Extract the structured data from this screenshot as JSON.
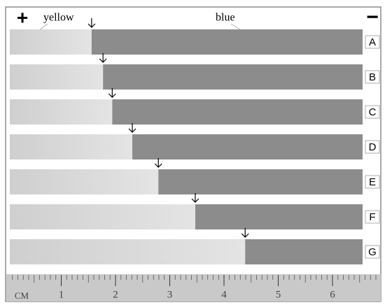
{
  "header": {
    "plus": "+",
    "yellow": "yellow",
    "blue": "blue",
    "minus": "−"
  },
  "strips": [
    {
      "label": "A",
      "boundary": 1.56
    },
    {
      "label": "B",
      "boundary": 1.77
    },
    {
      "label": "C",
      "boundary": 1.94
    },
    {
      "label": "D",
      "boundary": 2.31
    },
    {
      "label": "E",
      "boundary": 2.79
    },
    {
      "label": "F",
      "boundary": 3.47
    },
    {
      "label": "G",
      "boundary": 4.39
    }
  ],
  "ruler": {
    "unit": "CM",
    "ticks": [
      1,
      2,
      3,
      4,
      5,
      6
    ]
  }
}
